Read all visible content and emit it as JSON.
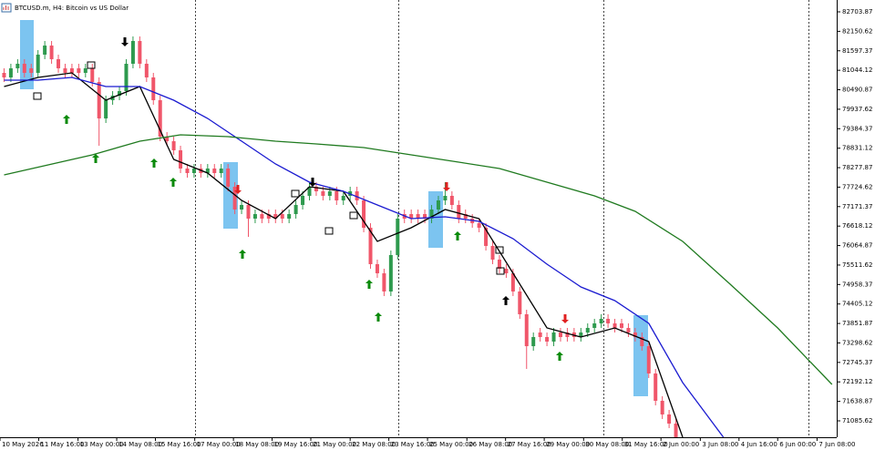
{
  "chart_data": {
    "type": "candlestick",
    "title": "BTCUSD.m, H4: Bitcoin vs US Dollar",
    "up_color": "#2e9a4e",
    "down_color": "#f0566a",
    "open": [
      80970,
      80841,
      81100,
      81229,
      81100,
      80970,
      81488,
      81746,
      81359,
      81100,
      81100,
      81100,
      80970,
      81100,
      80711,
      79676,
      80194,
      80323,
      80453,
      81229,
      81876,
      81229,
      80841,
      80194,
      79159,
      79029,
      78771,
      78253,
      78124,
      78253,
      78124,
      78253,
      78124,
      78253,
      77736,
      77089,
      77218,
      76830,
      76959,
      76959,
      76959,
      76959,
      76830,
      76959,
      77218,
      77477,
      77736,
      77606,
      77477,
      77606,
      77347,
      77477,
      77606,
      77347,
      76571,
      75536,
      75277,
      74760,
      75795,
      76959,
      76959,
      76959,
      76959,
      76830,
      77089,
      77347,
      77477,
      77218,
      76959,
      76830,
      76700,
      76571,
      76054,
      75666,
      75407,
      75277,
      74760,
      74113,
      73207,
      73596,
      73466,
      73337,
      73596,
      73596,
      73596,
      73466,
      73596,
      73725,
      73854,
      73984,
      73854,
      73854,
      73725,
      73596,
      73466,
      73207,
      72431,
      71655,
      71267,
      71008
    ],
    "high": [
      81100,
      81229,
      81359,
      81359,
      81229,
      81617,
      81876,
      81876,
      81488,
      81229,
      81229,
      81229,
      81229,
      81229,
      80841,
      80323,
      80453,
      80582,
      81359,
      82005,
      82005,
      81359,
      80970,
      80323,
      79288,
      79159,
      78900,
      78382,
      78382,
      78382,
      78382,
      78382,
      78382,
      78382,
      77865,
      77347,
      77347,
      77089,
      77089,
      77089,
      77089,
      77089,
      77089,
      77347,
      77606,
      77865,
      77865,
      77736,
      77736,
      77736,
      77606,
      77736,
      77736,
      77477,
      76700,
      75666,
      75407,
      75924,
      76959,
      77089,
      77089,
      77089,
      77089,
      77218,
      77477,
      77865,
      77606,
      77347,
      77089,
      76959,
      76830,
      76700,
      76183,
      75795,
      75536,
      75407,
      74889,
      74242,
      73596,
      73725,
      73596,
      73725,
      73725,
      73725,
      73725,
      73725,
      73854,
      73984,
      74113,
      74113,
      73984,
      73984,
      73854,
      73725,
      73596,
      73337,
      72561,
      71784,
      71396,
      71138
    ],
    "low": [
      80711,
      80711,
      80970,
      80841,
      80841,
      80841,
      81359,
      81229,
      80970,
      80841,
      80841,
      80841,
      80841,
      80582,
      78900,
      79547,
      80064,
      80194,
      80323,
      81100,
      81100,
      80711,
      80064,
      79029,
      78900,
      78641,
      78124,
      77994,
      77994,
      77994,
      77994,
      77994,
      77994,
      77606,
      76959,
      76959,
      76312,
      76700,
      76700,
      76700,
      76700,
      76700,
      76700,
      76830,
      77089,
      77347,
      77477,
      77347,
      77347,
      77218,
      77218,
      77347,
      77218,
      76442,
      75407,
      75148,
      74630,
      74630,
      75666,
      76700,
      76700,
      76700,
      76700,
      76700,
      76959,
      77218,
      77089,
      76700,
      76700,
      76571,
      76442,
      75924,
      75536,
      75277,
      75148,
      74630,
      73984,
      72561,
      73078,
      73337,
      73207,
      73207,
      73337,
      73337,
      73337,
      73337,
      73466,
      73596,
      73725,
      73725,
      73596,
      73596,
      73466,
      73337,
      73078,
      72302,
      71525,
      71138,
      70879,
      70490
    ],
    "close": [
      80841,
      81100,
      81229,
      80970,
      80970,
      81488,
      81746,
      81359,
      81100,
      80970,
      80970,
      80970,
      81100,
      80711,
      79676,
      80194,
      80323,
      80453,
      81229,
      81876,
      81229,
      80841,
      80194,
      79159,
      79029,
      78771,
      78253,
      78124,
      78253,
      78124,
      78253,
      78124,
      78253,
      77736,
      77089,
      77218,
      76830,
      76959,
      76830,
      76830,
      76830,
      76830,
      76959,
      77218,
      77477,
      77736,
      77606,
      77477,
      77606,
      77347,
      77477,
      77606,
      77347,
      76571,
      75536,
      75277,
      74760,
      75795,
      76830,
      76830,
      76830,
      76830,
      76830,
      77089,
      77347,
      77477,
      77218,
      76830,
      76830,
      76700,
      76571,
      76054,
      75666,
      75407,
      75277,
      74760,
      74113,
      73207,
      73466,
      73466,
      73337,
      73596,
      73466,
      73466,
      73466,
      73596,
      73725,
      73854,
      73984,
      73854,
      73725,
      73725,
      73596,
      73466,
      73207,
      72431,
      71655,
      71267,
      71008,
      70620
    ],
    "lines": [
      {
        "color": "#000000",
        "x": [
          0,
          5,
          10,
          15,
          20,
          25,
          30,
          35,
          40,
          45,
          50,
          55,
          60,
          65,
          70,
          75,
          80,
          85,
          90,
          95,
          100
        ],
        "values": [
          80582,
          80841,
          80970,
          80194,
          80582,
          78512,
          78124,
          77347,
          76830,
          77736,
          77606,
          76183,
          76571,
          77089,
          76830,
          75277,
          73725,
          73466,
          73725,
          73337,
          70620
        ]
      },
      {
        "color": "#1a1ad0",
        "x": [
          0,
          5,
          10,
          15,
          20,
          25,
          30,
          35,
          40,
          45,
          50,
          55,
          60,
          65,
          70,
          75,
          80,
          85,
          90,
          95,
          100,
          106
        ],
        "values": [
          80763,
          80763,
          80841,
          80582,
          80582,
          80194,
          79676,
          79029,
          78382,
          77865,
          77606,
          77218,
          76830,
          76882,
          76752,
          76261,
          75536,
          74889,
          74501,
          73854,
          72172,
          70620
        ]
      },
      {
        "color": "#1f7a1f",
        "x": [
          0,
          13,
          20,
          26,
          33,
          40,
          46,
          53,
          60,
          67,
          73,
          80,
          87,
          93,
          100,
          107,
          114,
          122
        ],
        "values": [
          78072,
          78641,
          79029,
          79211,
          79159,
          79029,
          78952,
          78848,
          78641,
          78434,
          78253,
          77865,
          77477,
          77037,
          76183,
          74967,
          73725,
          72121
        ]
      }
    ],
    "separators": [
      28.1,
      58.1,
      88.3,
      118.5
    ],
    "xlim": [
      -0.6,
      122.7
    ],
    "xticks": [
      {
        "value": -0.6,
        "label": "10 May 2026"
      },
      {
        "value": 5.1,
        "label": "11 May 16:00"
      },
      {
        "value": 10.9,
        "label": "13 May 00:00"
      },
      {
        "value": 16.6,
        "label": "14 May 08:00"
      },
      {
        "value": 22.3,
        "label": "15 May 16:00"
      },
      {
        "value": 28.1,
        "label": "17 May 00:00"
      },
      {
        "value": 33.8,
        "label": "18 May 08:00"
      },
      {
        "value": 39.5,
        "label": "19 May 16:00"
      },
      {
        "value": 45.2,
        "label": "21 May 00:00"
      },
      {
        "value": 51.0,
        "label": "22 May 08:00"
      },
      {
        "value": 56.7,
        "label": "23 May 16:00"
      },
      {
        "value": 62.4,
        "label": "25 May 00:00"
      },
      {
        "value": 68.2,
        "label": "26 May 08:00"
      },
      {
        "value": 73.9,
        "label": "27 May 16:00"
      },
      {
        "value": 79.6,
        "label": "29 May 00:00"
      },
      {
        "value": 85.4,
        "label": "30 May 08:00"
      },
      {
        "value": 91.1,
        "label": "31 May 16:00"
      },
      {
        "value": 96.8,
        "label": "2 Jun 00:00"
      },
      {
        "value": 102.6,
        "label": "3 Jun 08:00"
      },
      {
        "value": 108.3,
        "label": "4 Jun 16:00"
      },
      {
        "value": 114.0,
        "label": "6 Jun 00:00"
      },
      {
        "value": 119.8,
        "label": "7 Jun 08:00"
      }
    ],
    "ylim": [
      70619.87,
      83040.25
    ],
    "yticks": [
      82703.87,
      82150.62,
      81597.37,
      81044.12,
      80490.87,
      79937.62,
      79384.37,
      78831.12,
      78277.87,
      77724.62,
      77171.37,
      76618.12,
      76064.87,
      75511.62,
      74958.37,
      74405.12,
      73851.87,
      73298.62,
      72745.37,
      72192.12,
      71638.87,
      71085.62
    ]
  }
}
